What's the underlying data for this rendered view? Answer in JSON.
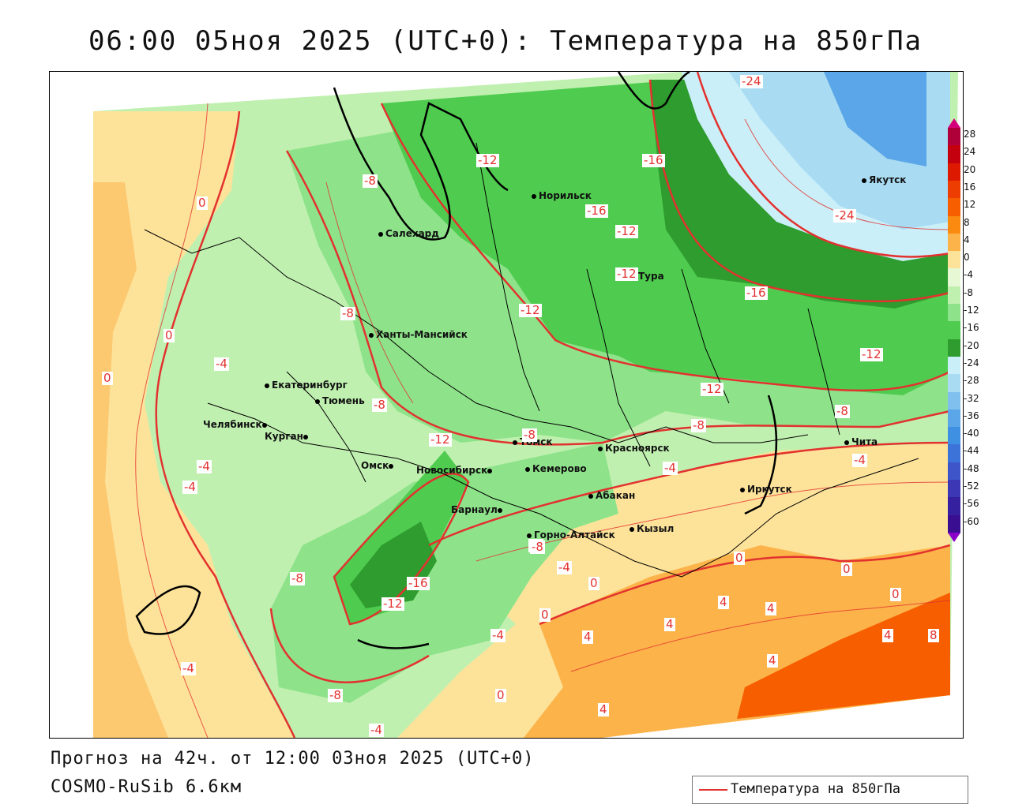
{
  "header": {
    "title": "06:00 05ноя 2025 (UTC+0): Температура на 850гПа"
  },
  "footer": {
    "forecast": "Прогноз на 42ч. от 12:00 03ноя 2025 (UTC+0)",
    "model": "COSMO-RuSib 6.6км"
  },
  "legend": {
    "label": "Температура на 850гПа",
    "line_color": "#e2322f"
  },
  "scale": {
    "ticks": [
      "28",
      "24",
      "20",
      "16",
      "12",
      "8",
      "4",
      "0",
      "-4",
      "-8",
      "-12",
      "-16",
      "-20",
      "-24",
      "-28",
      "-32",
      "-36",
      "-40",
      "-44",
      "-48",
      "-52",
      "-56",
      "-60"
    ],
    "colors": [
      "#b0003a",
      "#c5000e",
      "#dd1a00",
      "#ee3d00",
      "#f65e00",
      "#fa8a10",
      "#fcb34a",
      "#fde39a",
      "#e6f8d4",
      "#c0f0b0",
      "#8ee38a",
      "#4fcc4f",
      "#2e9c2e",
      "#cbeff8",
      "#a9dcf3",
      "#7fc0ee",
      "#5aa6e8",
      "#3f8fe2",
      "#3b73d8",
      "#3d55c8",
      "#3c37b4",
      "#3520a0",
      "#3a0e90"
    ]
  },
  "cities": [
    {
      "name": "Салехард"
    },
    {
      "name": "Норильск"
    },
    {
      "name": "Якутск"
    },
    {
      "name": "Тура"
    },
    {
      "name": "Ханты-Мансийск"
    },
    {
      "name": "Екатеринбург"
    },
    {
      "name": "Тюмень"
    },
    {
      "name": "Челябинск"
    },
    {
      "name": "Курган"
    },
    {
      "name": "Омск"
    },
    {
      "name": "Новосибирск"
    },
    {
      "name": "Томск"
    },
    {
      "name": "Кемерово"
    },
    {
      "name": "Красноярск"
    },
    {
      "name": "Барнаул"
    },
    {
      "name": "Абакан"
    },
    {
      "name": "Горно-Алтайск"
    },
    {
      "name": "Кызыл"
    },
    {
      "name": "Иркутск"
    },
    {
      "name": "Чита"
    }
  ],
  "contour_labels": [
    "-24",
    "-16",
    "-12",
    "-16",
    "-12",
    "-8",
    "-8",
    "-12",
    "0",
    "-4",
    "0",
    "-8",
    "-12",
    "-8",
    "-12",
    "-8",
    "-12",
    "-8",
    "-8",
    "-4",
    "-4",
    "-4",
    "-4",
    "-4",
    "-8",
    "-16",
    "-12",
    "-8",
    "0",
    "-4",
    "0",
    "0",
    "0",
    "4",
    "4",
    "4",
    "4",
    "0",
    "-4",
    "4",
    "0",
    "4",
    "8",
    "4",
    "-4",
    "-8",
    "0",
    "-24",
    "-16",
    "-12"
  ]
}
